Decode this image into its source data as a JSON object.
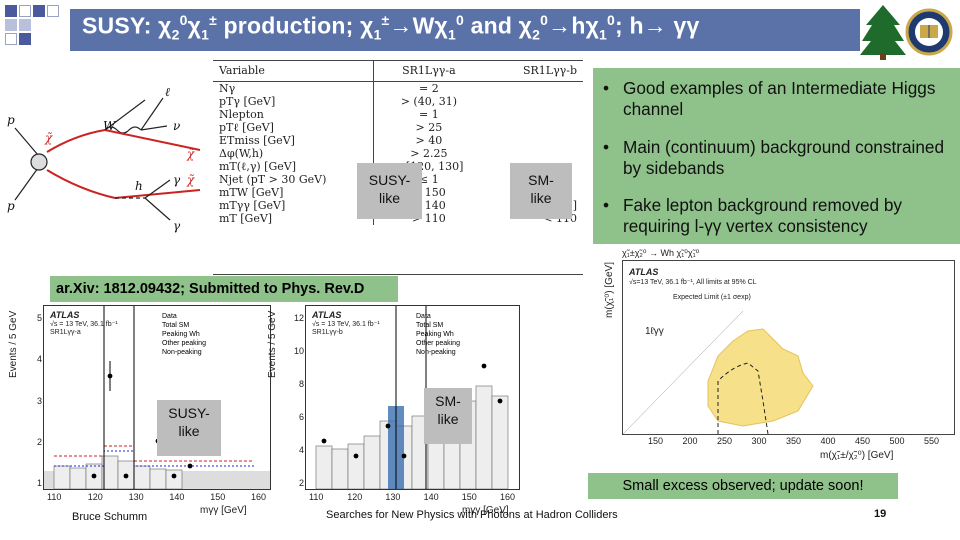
{
  "title": {
    "text_html": "SUSY:  &chi;<sub>2</sub><sup>0</sup>&chi;<sub>1</sub><sup>&plusmn;</sup> production; &chi;<sub>1</sub><sup>&plusmn;</sup>&rarr;W&chi;<sub>1</sub><sup>0</sup>  and &chi;<sub>2</sub><sup>0</sup>&rarr;h&chi;<sub>1</sub><sup>0</sup>;  h&rarr; &gamma;&gamma;"
  },
  "feynman": {
    "labels": [
      "p",
      "p",
      "W",
      "ℓ",
      "ν",
      "h",
      "γ",
      "γ"
    ],
    "chi_labels": [
      "χ̃1±",
      "χ̃20",
      "χ̃10",
      "χ̃10"
    ]
  },
  "cut_table": {
    "headers": [
      "Variable",
      "SR1Lγγ-a",
      "SR1Lγγ-b"
    ],
    "rows": [
      [
        "Nγ",
        "= 2",
        ""
      ],
      [
        "pTγ [GeV]",
        "> (40, 31)",
        ""
      ],
      [
        "Nlepton",
        "= 1",
        ""
      ],
      [
        "pTℓ [GeV]",
        "> 25",
        ""
      ],
      [
        "ETmiss [GeV]",
        "> 40",
        ""
      ],
      [
        "Δφ(W,h)",
        "> 2.25",
        ""
      ],
      [
        "mT(ℓ,γ) [GeV]",
        "∈ [120, 130]",
        ""
      ],
      [
        "Njet (pT > 30 GeV)",
        "≤ 1",
        ""
      ],
      [
        "mTW [GeV]",
        "≥ 150",
        ""
      ],
      [
        "mTγγ [GeV]",
        "> 140",
        "∈ [80, 140]"
      ],
      [
        "mT [GeV]",
        "> 110",
        "< 110"
      ]
    ]
  },
  "susy_like_top": "SUSY-\nlike",
  "sm_like_top": "SM-\nlike",
  "bullets": [
    "Good examples of an Intermediate Higgs channel",
    "Main (continuum) background constrained by sidebands",
    "Fake lepton background removed by requiring l-γγ vertex consistency"
  ],
  "arxiv": "ar.Xiv: 1812.09432; Submitted to Phys. Rev.D",
  "plot_a": {
    "ylabel": "Events / 5 GeV",
    "xlabel": "mγγ [GeV]",
    "atlas": "ATLAS",
    "energy": "√s = 13 TeV, 36.1 fb⁻¹",
    "region": "SR1Lγγ-a",
    "yticks": [
      "5",
      "4",
      "3",
      "2",
      "1"
    ],
    "xticks": [
      "110",
      "120",
      "130",
      "140",
      "150",
      "160"
    ]
  },
  "plot_b": {
    "ylabel": "Events / 5 GeV",
    "xlabel": "mγγ [GeV]",
    "atlas": "ATLAS",
    "energy": "√s = 13 TeV, 36.1 fb⁻¹",
    "region": "SR1Lγγ-b",
    "yticks": [
      "12",
      "10",
      "8",
      "6",
      "4",
      "2"
    ],
    "xticks": [
      "110",
      "120",
      "130",
      "140",
      "150",
      "160"
    ]
  },
  "legend_items": [
    "Data",
    "Total SM",
    "Peaking Wh",
    "Other peaking",
    "Non-peaking"
  ],
  "susy_like_bottom": "SUSY-\nlike",
  "sm_like_bottom": "SM-\nlike",
  "limit_plot": {
    "atlas": "ATLAS",
    "info": "√s=13 TeV, 36.1 fb⁻¹, All limits at 95% CL",
    "legend": "Expected Limit (±1 σexp)",
    "channel": "1ℓγγ",
    "ylabel": "m(χ̃₁⁰) [GeV]",
    "xlabel": "m(χ̃₁±/χ̃₂⁰) [GeV]",
    "xticks": [
      "150",
      "200",
      "250",
      "300",
      "350",
      "400",
      "450",
      "500",
      "550"
    ],
    "process": "χ̃₁±χ̃₂⁰ → Wh χ̃₁⁰χ̃₁⁰"
  },
  "excess_note": "Small excess observed; update soon!",
  "footer_left": "Bruce Schumm",
  "footer_center": "Searches for New Physics with Photons at Hadron Colliders",
  "page_number": "19",
  "colors": {
    "title_bar": "#5a72a8",
    "green": "#8fc18a",
    "gray_label": "#bdbdbd",
    "yellow": "#f7e08a"
  }
}
